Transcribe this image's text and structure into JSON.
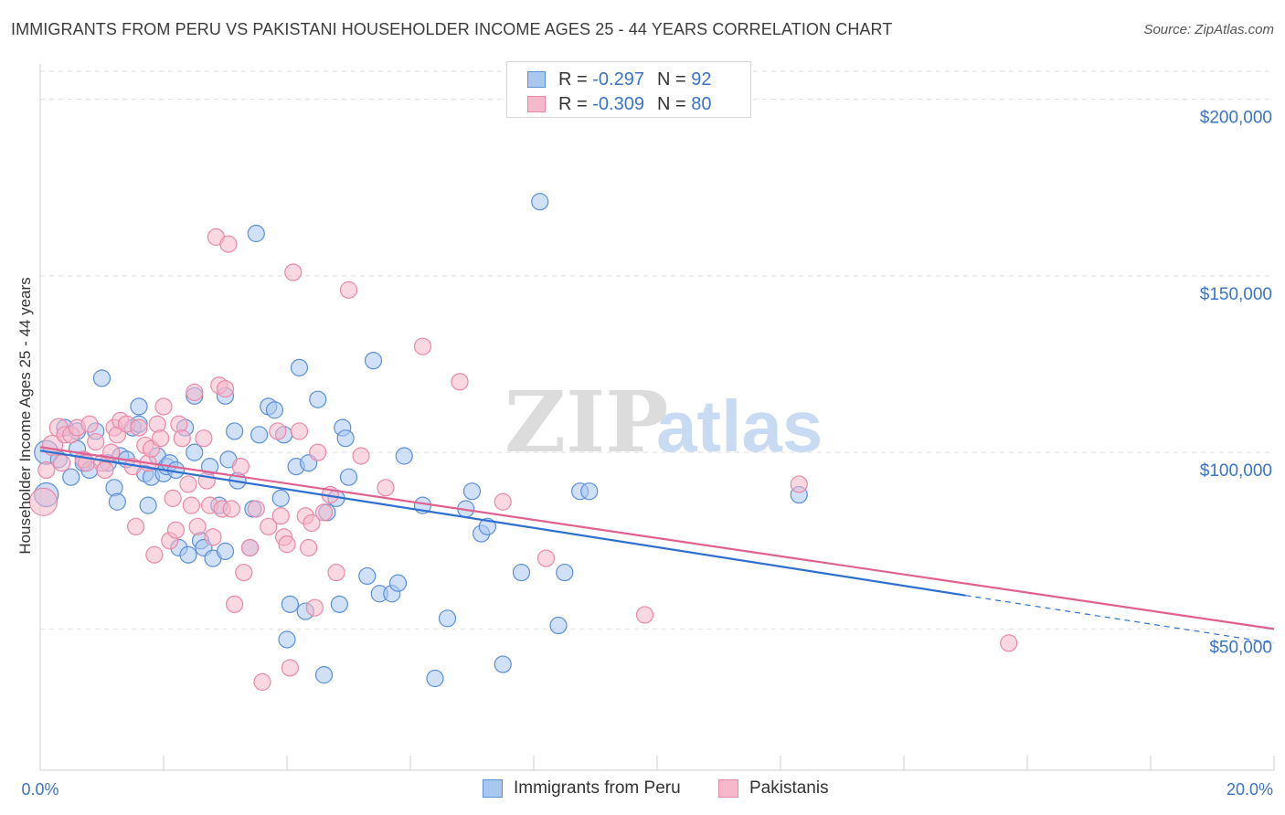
{
  "title": "IMMIGRANTS FROM PERU VS PAKISTANI HOUSEHOLDER INCOME AGES 25 - 44 YEARS CORRELATION CHART",
  "source": "Source: ZipAtlas.com",
  "watermark": {
    "zip": "ZIP",
    "atlas": "atlas"
  },
  "legend": {
    "r_label": "R =",
    "n_label": "N =",
    "series": [
      {
        "r": "-0.297",
        "n": "92"
      },
      {
        "r": "-0.309",
        "n": "80"
      }
    ]
  },
  "colors": {
    "peru_fill": "#a9c8f0",
    "peru_stroke": "#5b8fd6",
    "peru_line": "#2e6fd0",
    "pak_fill": "#f6b8cb",
    "pak_stroke": "#e889a8",
    "pak_line": "#e0608f",
    "axis_text": "#3b73c8",
    "grid": "#dddddd"
  },
  "chart_data": {
    "type": "scatter",
    "title": "IMMIGRANTS FROM PERU VS PAKISTANI HOUSEHOLDER INCOME AGES 25 - 44 YEARS CORRELATION CHART",
    "xlabel": "",
    "ylabel": "Householder Income Ages 25 - 44 years",
    "xlim": [
      0,
      20
    ],
    "ylim": [
      10000,
      210000
    ],
    "x_tick_labels": [
      "0.0%",
      "20.0%"
    ],
    "y_ticks": [
      50000,
      100000,
      150000,
      200000
    ],
    "y_tick_labels": [
      "$50,000",
      "$100,000",
      "$150,000",
      "$200,000"
    ],
    "grid": "horizontal dashed",
    "legend_position": "top-center",
    "series": [
      {
        "name": "Immigrants from Peru",
        "r": -0.297,
        "n": 92,
        "trend": {
          "x0": 0,
          "y0": 100500,
          "x1": 15,
          "y1": 59500,
          "dashed_to_x": 20,
          "dashed_to_y": 46000
        },
        "points": [
          [
            0.1,
            100000,
            13
          ],
          [
            0.1,
            88000,
            13
          ],
          [
            0.3,
            98000,
            9
          ],
          [
            0.4,
            107000,
            9
          ],
          [
            0.5,
            93000,
            9
          ],
          [
            0.6,
            106000,
            9
          ],
          [
            0.6,
            101000,
            9
          ],
          [
            0.7,
            97000,
            9
          ],
          [
            0.8,
            95000,
            9
          ],
          [
            0.9,
            106000,
            9
          ],
          [
            1.0,
            121000,
            9
          ],
          [
            1.1,
            97000,
            9
          ],
          [
            1.2,
            90000,
            9
          ],
          [
            1.25,
            86000,
            9
          ],
          [
            1.3,
            99000,
            9
          ],
          [
            1.4,
            98000,
            9
          ],
          [
            1.5,
            107000,
            9
          ],
          [
            1.6,
            108000,
            9
          ],
          [
            1.6,
            113000,
            9
          ],
          [
            1.7,
            94000,
            9
          ],
          [
            1.75,
            85000,
            9
          ],
          [
            1.8,
            93000,
            9
          ],
          [
            1.9,
            99000,
            9
          ],
          [
            2.0,
            94000,
            9
          ],
          [
            2.05,
            96000,
            9
          ],
          [
            2.1,
            97000,
            9
          ],
          [
            2.2,
            95000,
            9
          ],
          [
            2.25,
            73000,
            9
          ],
          [
            2.35,
            107000,
            9
          ],
          [
            2.4,
            71000,
            9
          ],
          [
            2.5,
            116000,
            9
          ],
          [
            2.5,
            100000,
            9
          ],
          [
            2.6,
            75000,
            9
          ],
          [
            2.65,
            73000,
            9
          ],
          [
            2.75,
            96000,
            9
          ],
          [
            2.8,
            70000,
            9
          ],
          [
            2.9,
            85000,
            9
          ],
          [
            3.0,
            116000,
            9
          ],
          [
            3.0,
            72000,
            9
          ],
          [
            3.05,
            98000,
            9
          ],
          [
            3.15,
            106000,
            9
          ],
          [
            3.2,
            92000,
            9
          ],
          [
            3.4,
            73000,
            9
          ],
          [
            3.45,
            84000,
            9
          ],
          [
            3.5,
            162000,
            9
          ],
          [
            3.55,
            105000,
            9
          ],
          [
            3.7,
            113000,
            9
          ],
          [
            3.8,
            112000,
            9
          ],
          [
            3.9,
            87000,
            9
          ],
          [
            3.95,
            105000,
            9
          ],
          [
            4.0,
            47000,
            9
          ],
          [
            4.05,
            57000,
            9
          ],
          [
            4.15,
            96000,
            9
          ],
          [
            4.2,
            124000,
            9
          ],
          [
            4.3,
            55000,
            9
          ],
          [
            4.35,
            97000,
            9
          ],
          [
            4.5,
            115000,
            9
          ],
          [
            4.6,
            37000,
            9
          ],
          [
            4.65,
            83000,
            9
          ],
          [
            4.8,
            87000,
            9
          ],
          [
            4.85,
            57000,
            9
          ],
          [
            4.9,
            107000,
            9
          ],
          [
            4.95,
            104000,
            9
          ],
          [
            5.0,
            93000,
            9
          ],
          [
            5.3,
            65000,
            9
          ],
          [
            5.4,
            126000,
            9
          ],
          [
            5.5,
            60000,
            9
          ],
          [
            5.7,
            60000,
            9
          ],
          [
            5.8,
            63000,
            9
          ],
          [
            5.9,
            99000,
            9
          ],
          [
            6.2,
            85000,
            9
          ],
          [
            6.4,
            36000,
            9
          ],
          [
            6.6,
            53000,
            9
          ],
          [
            6.9,
            84000,
            9
          ],
          [
            7.0,
            89000,
            9
          ],
          [
            7.15,
            77000,
            9
          ],
          [
            7.25,
            79000,
            9
          ],
          [
            7.5,
            40000,
            9
          ],
          [
            7.8,
            66000,
            9
          ],
          [
            8.1,
            171000,
            9
          ],
          [
            8.4,
            51000,
            9
          ],
          [
            8.5,
            66000,
            9
          ],
          [
            8.75,
            89000,
            9
          ],
          [
            8.9,
            89000,
            9
          ],
          [
            12.3,
            88000,
            9
          ]
        ]
      },
      {
        "name": "Pakistanis",
        "r": -0.309,
        "n": 80,
        "trend": {
          "x0": 0,
          "y0": 101500,
          "x1": 20,
          "y1": 50000
        },
        "points": [
          [
            0.05,
            86000,
            15
          ],
          [
            0.1,
            95000,
            9
          ],
          [
            0.2,
            102000,
            11
          ],
          [
            0.3,
            107000,
            10
          ],
          [
            0.35,
            97000,
            9
          ],
          [
            0.4,
            105000,
            9
          ],
          [
            0.5,
            105000,
            9
          ],
          [
            0.6,
            107000,
            9
          ],
          [
            0.7,
            98000,
            9
          ],
          [
            0.75,
            97000,
            9
          ],
          [
            0.8,
            108000,
            9
          ],
          [
            0.9,
            103000,
            9
          ],
          [
            1.0,
            97000,
            9
          ],
          [
            1.05,
            95000,
            9
          ],
          [
            1.15,
            100000,
            9
          ],
          [
            1.2,
            107000,
            9
          ],
          [
            1.25,
            105000,
            9
          ],
          [
            1.3,
            109000,
            9
          ],
          [
            1.4,
            108000,
            9
          ],
          [
            1.5,
            96000,
            9
          ],
          [
            1.55,
            79000,
            9
          ],
          [
            1.6,
            107000,
            9
          ],
          [
            1.7,
            102000,
            9
          ],
          [
            1.75,
            97000,
            9
          ],
          [
            1.8,
            101000,
            9
          ],
          [
            1.85,
            71000,
            9
          ],
          [
            1.9,
            108000,
            9
          ],
          [
            1.95,
            104000,
            9
          ],
          [
            2.0,
            113000,
            9
          ],
          [
            2.1,
            75000,
            9
          ],
          [
            2.15,
            87000,
            9
          ],
          [
            2.2,
            78000,
            9
          ],
          [
            2.25,
            108000,
            9
          ],
          [
            2.3,
            104000,
            9
          ],
          [
            2.4,
            91000,
            9
          ],
          [
            2.45,
            85000,
            9
          ],
          [
            2.5,
            117000,
            9
          ],
          [
            2.55,
            79000,
            9
          ],
          [
            2.65,
            104000,
            9
          ],
          [
            2.7,
            92000,
            9
          ],
          [
            2.75,
            85000,
            9
          ],
          [
            2.8,
            76000,
            9
          ],
          [
            2.85,
            161000,
            9
          ],
          [
            2.9,
            119000,
            9
          ],
          [
            2.95,
            84000,
            9
          ],
          [
            3.0,
            118000,
            9
          ],
          [
            3.05,
            159000,
            9
          ],
          [
            3.1,
            84000,
            9
          ],
          [
            3.15,
            57000,
            9
          ],
          [
            3.25,
            96000,
            9
          ],
          [
            3.3,
            66000,
            9
          ],
          [
            3.4,
            73000,
            9
          ],
          [
            3.5,
            84000,
            9
          ],
          [
            3.6,
            35000,
            9
          ],
          [
            3.7,
            79000,
            9
          ],
          [
            3.85,
            106000,
            9
          ],
          [
            3.9,
            82000,
            9
          ],
          [
            3.95,
            76000,
            9
          ],
          [
            4.0,
            74000,
            9
          ],
          [
            4.05,
            39000,
            9
          ],
          [
            4.1,
            151000,
            9
          ],
          [
            4.2,
            106000,
            9
          ],
          [
            4.3,
            82000,
            9
          ],
          [
            4.35,
            73000,
            9
          ],
          [
            4.4,
            80000,
            9
          ],
          [
            4.45,
            56000,
            9
          ],
          [
            4.5,
            100000,
            9
          ],
          [
            4.6,
            83000,
            9
          ],
          [
            4.7,
            88000,
            9
          ],
          [
            4.8,
            66000,
            9
          ],
          [
            5.0,
            146000,
            9
          ],
          [
            5.2,
            99000,
            9
          ],
          [
            5.6,
            90000,
            9
          ],
          [
            6.2,
            130000,
            9
          ],
          [
            6.8,
            120000,
            9
          ],
          [
            7.5,
            86000,
            9
          ],
          [
            8.2,
            70000,
            9
          ],
          [
            9.8,
            54000,
            9
          ],
          [
            12.3,
            91000,
            9
          ],
          [
            15.7,
            46000,
            9
          ]
        ]
      }
    ]
  },
  "bottom_legend": [
    "Immigrants from Peru",
    "Pakistanis"
  ]
}
